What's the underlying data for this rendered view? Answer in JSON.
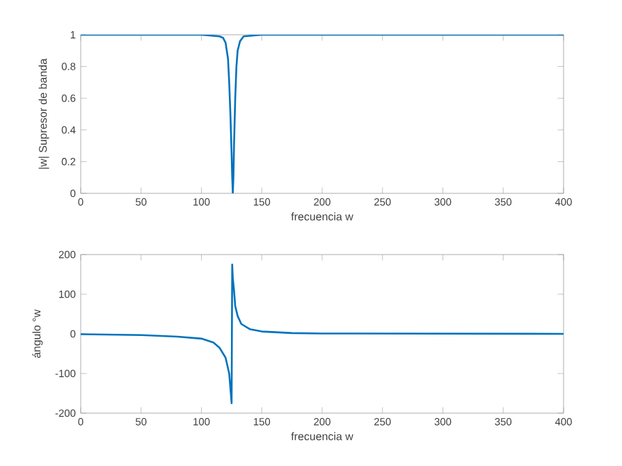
{
  "chart_data": [
    {
      "type": "line",
      "xlabel": "frecuencia w",
      "ylabel": "|w| Supresor de banda",
      "xlim": [
        0,
        400
      ],
      "ylim": [
        0,
        1
      ],
      "xticks": [
        0,
        50,
        100,
        150,
        200,
        250,
        300,
        350,
        400
      ],
      "yticks": [
        0,
        0.2,
        0.4,
        0.6,
        0.8,
        1
      ],
      "grid": false,
      "series": [
        {
          "color": "#0072bd",
          "x": [
            0,
            100,
            115,
            118,
            120,
            122,
            123,
            124,
            125,
            125.5,
            126,
            126.5,
            127,
            128,
            129,
            130,
            132,
            135,
            150,
            400
          ],
          "values": [
            1,
            1,
            0.99,
            0.98,
            0.95,
            0.85,
            0.7,
            0.5,
            0.25,
            0.1,
            0,
            0.1,
            0.3,
            0.6,
            0.8,
            0.9,
            0.96,
            0.99,
            1,
            1
          ]
        }
      ]
    },
    {
      "type": "line",
      "xlabel": "frecuencia w",
      "ylabel": "ángulo °w",
      "xlim": [
        0,
        400
      ],
      "ylim": [
        -200,
        200
      ],
      "xticks": [
        0,
        50,
        100,
        150,
        200,
        250,
        300,
        350,
        400
      ],
      "yticks": [
        -200,
        -100,
        0,
        100,
        200
      ],
      "grid": false,
      "series": [
        {
          "color": "#0072bd",
          "x": [
            0,
            50,
            80,
            100,
            110,
            115,
            120,
            123,
            125,
            125.5,
            126,
            127,
            128,
            130,
            133,
            140,
            150,
            175,
            200,
            400
          ],
          "values": [
            -1,
            -3,
            -7,
            -12,
            -22,
            -35,
            -60,
            -100,
            -175,
            175,
            140,
            110,
            70,
            45,
            25,
            12,
            6,
            2,
            1,
            0
          ]
        }
      ]
    }
  ]
}
